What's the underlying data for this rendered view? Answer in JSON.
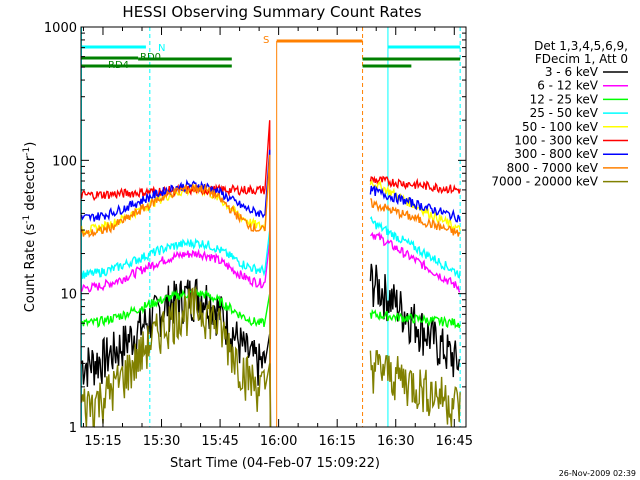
{
  "chart_data": {
    "type": "line",
    "title": "HESSI Observing Summary Count Rates",
    "xlabel": "Start Time (04-Feb-07 15:09:22)",
    "ylabel_parts": [
      "Count Rate (s",
      "-1",
      " detector",
      "-1",
      ")"
    ],
    "ylim": [
      1,
      1000
    ],
    "y_scale": "log",
    "xlim": [
      "15:09",
      "16:48"
    ],
    "x_ticks": [
      "15:15",
      "15:30",
      "15:45",
      "16:00",
      "16:15",
      "16:30",
      "16:45"
    ],
    "y_ticks": [
      "1",
      "10",
      "100",
      "1000"
    ],
    "legend_header": [
      "Det 1,3,4,5,6,9,",
      "FDecim 1, Att 0"
    ],
    "legend_position": "right",
    "timestamp": "26-Nov-2009 02:39",
    "series": [
      {
        "name": "3 - 6 keV",
        "color": "#000000",
        "orbit1": [
          3,
          10,
          3
        ],
        "orbit2": [
          13,
          3
        ]
      },
      {
        "name": "6 - 12 keV",
        "color": "#ff00ff",
        "orbit1": [
          11,
          20,
          12
        ],
        "orbit2": [
          29,
          11
        ]
      },
      {
        "name": "12 - 25 keV",
        "color": "#00ff00",
        "orbit1": [
          6,
          10,
          6
        ],
        "orbit2": [
          7,
          6
        ]
      },
      {
        "name": "25 - 50 keV",
        "color": "#00ffff",
        "orbit1": [
          14,
          24,
          15
        ],
        "orbit2": [
          35,
          14
        ]
      },
      {
        "name": "50 - 100 keV",
        "color": "#ffff00",
        "orbit1": [
          30,
          60,
          32
        ],
        "orbit2": [
          70,
          30
        ]
      },
      {
        "name": "100 - 300 keV",
        "color": "#ff0000",
        "orbit1": [
          55,
          60,
          60
        ],
        "orbit2": [
          72,
          60
        ]
      },
      {
        "name": "300 - 800 keV",
        "color": "#0000ff",
        "orbit1": [
          37,
          65,
          40
        ],
        "orbit2": [
          60,
          37
        ]
      },
      {
        "name": "800 - 7000 keV",
        "color": "#ff8000",
        "orbit1": [
          28,
          62,
          30
        ],
        "orbit2": [
          48,
          28
        ]
      },
      {
        "name": "7000 - 20000 keV",
        "color": "#808000",
        "orbit1": [
          1.5,
          8,
          2
        ],
        "orbit2": [
          3,
          1.5
        ]
      }
    ],
    "flags": [
      {
        "label": "N",
        "color": "#00ffff"
      },
      {
        "label": "RD0",
        "color": "#008000"
      },
      {
        "label": "RD4",
        "color": "#008000"
      },
      {
        "label": "S",
        "color": "#ff8000"
      }
    ]
  }
}
